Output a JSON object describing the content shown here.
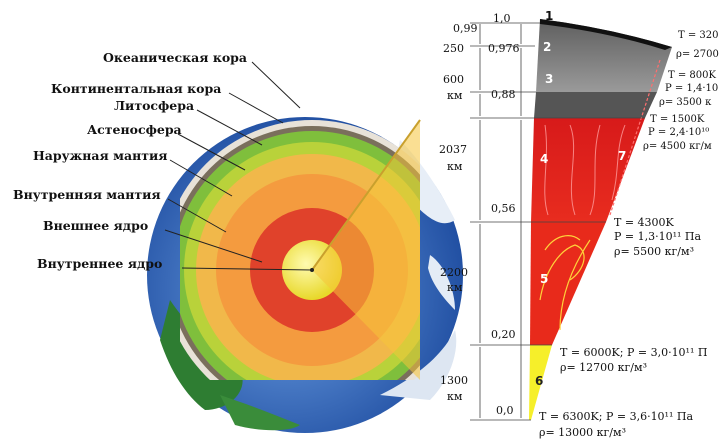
{
  "left_labels": [
    "Океаническая кора",
    "Континентальная кора",
    "Литосфера",
    "Астеносфера",
    "Наружная мантия",
    "Внутренняя мантия",
    "Внешнее ядро",
    "Внутреннее ядро"
  ],
  "radius_ticks": [
    "1,0",
    "0,99",
    "0,976",
    "0,88",
    "0,56",
    "0,20",
    "0,0"
  ],
  "layer_thickness": [
    {
      "value": "250",
      "unit": ""
    },
    {
      "value": "600",
      "unit": "км"
    },
    {
      "value": "2037",
      "unit": "км"
    },
    {
      "value": "2200",
      "unit": "км"
    },
    {
      "value": "1300",
      "unit": "км"
    }
  ],
  "zone_numbers": [
    "1",
    "2",
    "3",
    "4",
    "5",
    "6",
    "7"
  ],
  "conditions": {
    "crust_T": "T = 320",
    "crust_rho": "ρ= 2700",
    "upper_T": "T = 800K",
    "upper_P": "P = 1,4·10",
    "upper_rho": "ρ= 3500 к",
    "mid_T": "T = 1500K",
    "mid_P": "P = 2,4·10¹⁰",
    "mid_rho": "ρ= 4500 кг/м",
    "cmb_T": "T = 4300K",
    "cmb_P": "P = 1,3·10¹¹ Па",
    "cmb_rho": "ρ= 5500 кг/м³",
    "icb_TP": "T = 6000K; P = 3,0·10¹¹ П",
    "icb_rho": "ρ= 12700 кг/м³",
    "center_TP": "T = 6300K; P = 3,6·10¹¹ Па",
    "center_rho": "ρ= 13000 кг/м³"
  },
  "colors": {
    "ocean": "#2d62b8",
    "crust_gray": "#8a8a8a",
    "mantle_red": "#d81e1e",
    "inner_core_yellow": "#f5ef2a"
  }
}
